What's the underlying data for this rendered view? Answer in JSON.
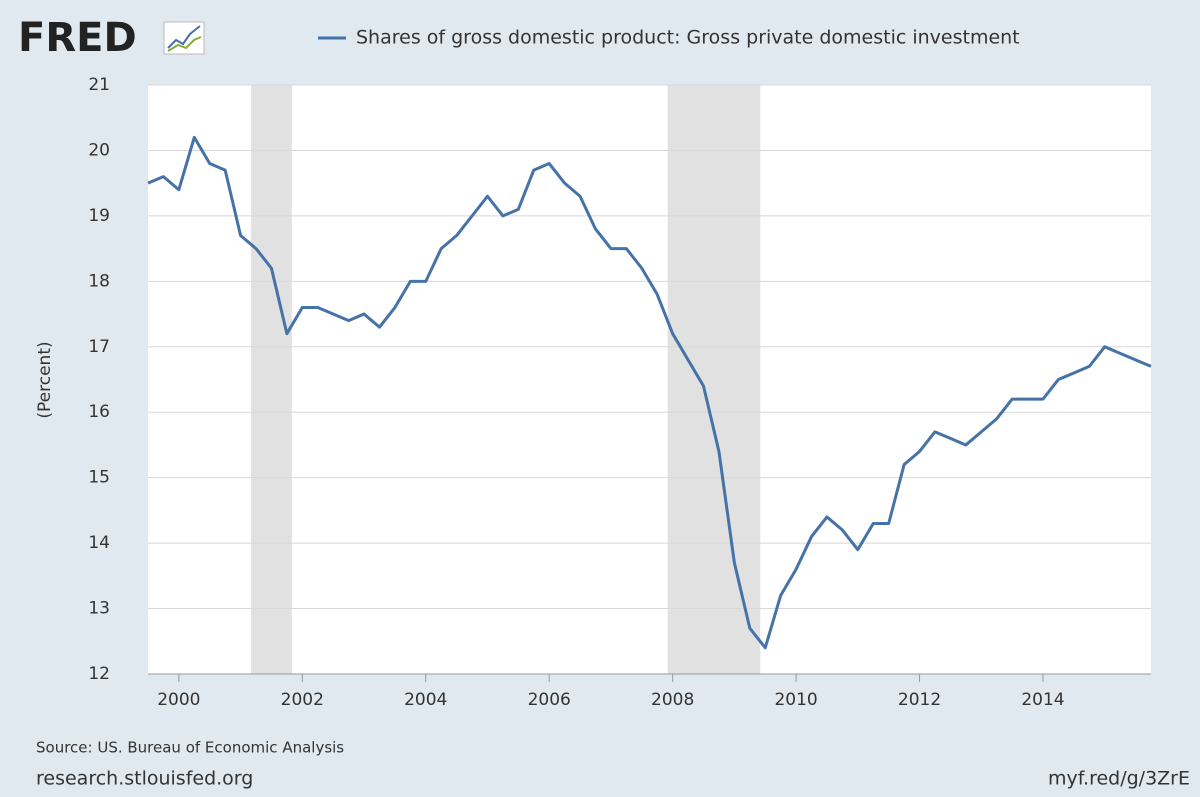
{
  "chart_data": {
    "type": "line",
    "logo": "FRED",
    "ylabel": "(Percent)",
    "source": "Source: US. Bureau of Economic Analysis",
    "site": "research.stlouisfed.org",
    "short_url": "myf.red/g/3ZrE",
    "x": [
      1999.5,
      1999.75,
      2000,
      2000.25,
      2000.5,
      2000.75,
      2001,
      2001.25,
      2001.5,
      2001.75,
      2002,
      2002.25,
      2002.5,
      2002.75,
      2003,
      2003.25,
      2003.5,
      2003.75,
      2004,
      2004.25,
      2004.5,
      2004.75,
      2005,
      2005.25,
      2005.5,
      2005.75,
      2006,
      2006.25,
      2006.5,
      2006.75,
      2007,
      2007.25,
      2007.5,
      2007.75,
      2008,
      2008.25,
      2008.5,
      2008.75,
      2009,
      2009.25,
      2009.5,
      2009.75,
      2010,
      2010.25,
      2010.5,
      2010.75,
      2011,
      2011.25,
      2011.5,
      2011.75,
      2012,
      2012.25,
      2012.5,
      2012.75,
      2013,
      2013.25,
      2013.5,
      2013.75,
      2014,
      2014.25,
      2014.5,
      2014.75,
      2015,
      2015.25,
      2015.5,
      2015.75
    ],
    "series": [
      {
        "name": "Shares of gross domestic product: Gross private domestic investment",
        "color": "#4572a7",
        "values": [
          19.5,
          19.6,
          19.4,
          20.2,
          19.8,
          19.7,
          18.7,
          18.5,
          18.2,
          17.2,
          17.6,
          17.6,
          17.5,
          17.4,
          17.5,
          17.3,
          17.6,
          18.0,
          18.0,
          18.5,
          18.7,
          19.0,
          19.3,
          19.0,
          19.1,
          19.7,
          19.8,
          19.5,
          19.3,
          18.8,
          18.5,
          18.5,
          18.2,
          17.8,
          17.2,
          16.8,
          16.4,
          15.4,
          13.7,
          12.7,
          12.4,
          13.2,
          13.6,
          14.1,
          14.4,
          14.2,
          13.9,
          14.3,
          14.3,
          15.2,
          15.4,
          15.7,
          15.6,
          15.5,
          15.7,
          15.9,
          16.2,
          16.2,
          16.2,
          16.5,
          16.6,
          16.7,
          17.0,
          16.9,
          16.8,
          16.7
        ]
      }
    ],
    "shaded_ranges": [
      [
        2001.17,
        2001.83
      ],
      [
        2007.92,
        2009.42
      ]
    ],
    "shade_color": "#e1e1e1",
    "xlim": [
      1999.5,
      2015.75
    ],
    "xticks": [
      2000,
      2002,
      2004,
      2006,
      2008,
      2010,
      2012,
      2014
    ],
    "ylim": [
      12,
      21
    ],
    "yticks": [
      12,
      13,
      14,
      15,
      16,
      17,
      18,
      19,
      20,
      21
    ],
    "grid": true
  }
}
